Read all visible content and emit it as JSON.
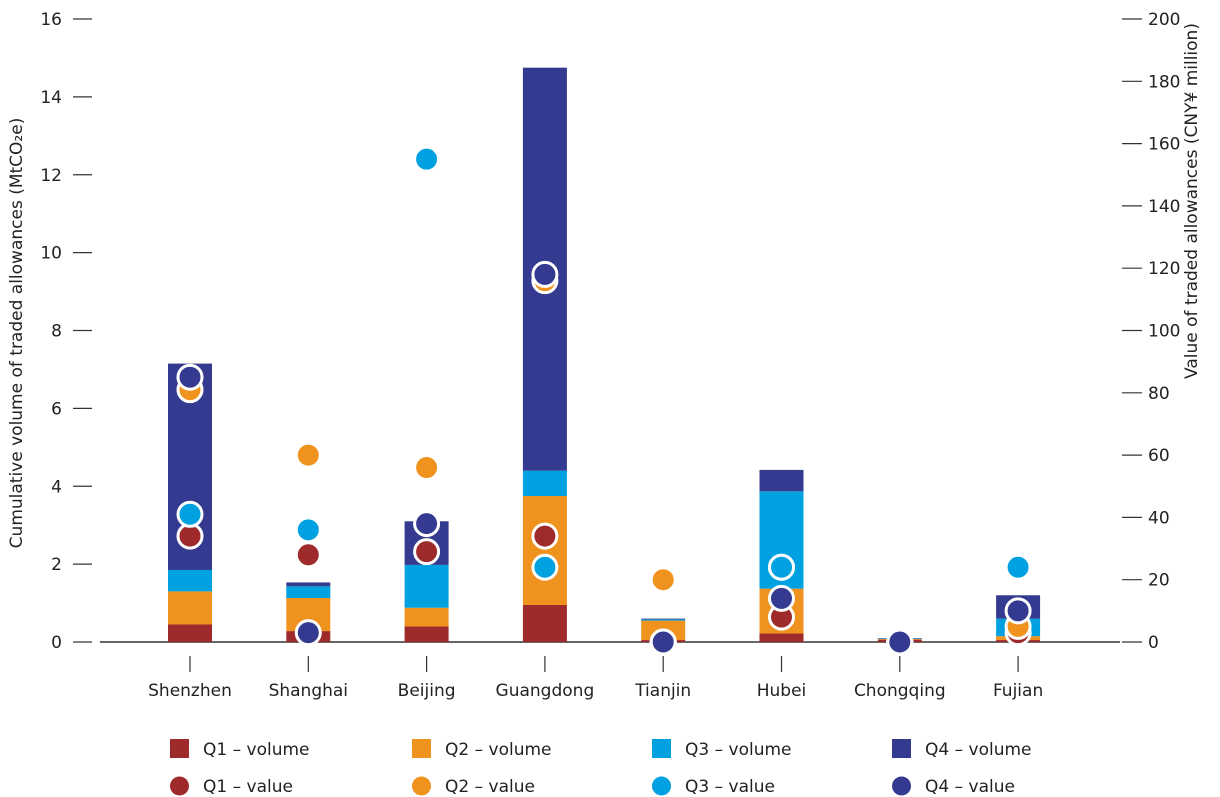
{
  "chart_data": {
    "type": "bar",
    "stacked": true,
    "categories": [
      "Shenzhen",
      "Shanghai",
      "Beijing",
      "Guangdong",
      "Tianjin",
      "Hubei",
      "Chongqing",
      "Fujian"
    ],
    "ylabel_left": "Cumulative volume of traded allowances (MtCO₂e)",
    "ylabel_right": "Value of traded allowances (CNY¥ million)",
    "ylim_left": [
      0,
      16
    ],
    "yticks_left": [
      0,
      2,
      4,
      6,
      8,
      10,
      12,
      14,
      16
    ],
    "ylim_right": [
      0,
      200
    ],
    "yticks_right": [
      0,
      20,
      40,
      60,
      80,
      100,
      120,
      140,
      160,
      180,
      200
    ],
    "grid": false,
    "legend_position": "bottom",
    "volume_series": [
      {
        "name": "Q1 – volume",
        "color": "#9e2a2b",
        "values": [
          0.45,
          0.28,
          0.4,
          0.95,
          0.05,
          0.22,
          0.06,
          0.05
        ]
      },
      {
        "name": "Q2 – volume",
        "color": "#f0921e",
        "values": [
          0.85,
          0.85,
          0.48,
          2.8,
          0.5,
          1.15,
          0.02,
          0.1
        ]
      },
      {
        "name": "Q3 – volume",
        "color": "#00a1e1",
        "values": [
          0.55,
          0.3,
          1.1,
          0.65,
          0.03,
          2.5,
          0.01,
          0.45
        ]
      },
      {
        "name": "Q4 – volume",
        "color": "#333a8f",
        "values": [
          5.3,
          0.1,
          1.12,
          10.35,
          0.02,
          0.55,
          0.01,
          0.6
        ]
      }
    ],
    "value_series": [
      {
        "name": "Q1 – value",
        "color": "#9e2a2b",
        "values": [
          34,
          28,
          29,
          34,
          0,
          8,
          0,
          3
        ]
      },
      {
        "name": "Q2 – value",
        "color": "#f0921e",
        "values": [
          81,
          60,
          56,
          116,
          20,
          24,
          0,
          5
        ]
      },
      {
        "name": "Q3 – value",
        "color": "#00a1e1",
        "values": [
          41,
          36,
          155,
          24,
          0,
          24,
          0,
          24
        ]
      },
      {
        "name": "Q4 – value",
        "color": "#333a8f",
        "values": [
          85,
          3,
          38,
          118,
          0,
          14,
          0,
          10
        ]
      }
    ]
  }
}
